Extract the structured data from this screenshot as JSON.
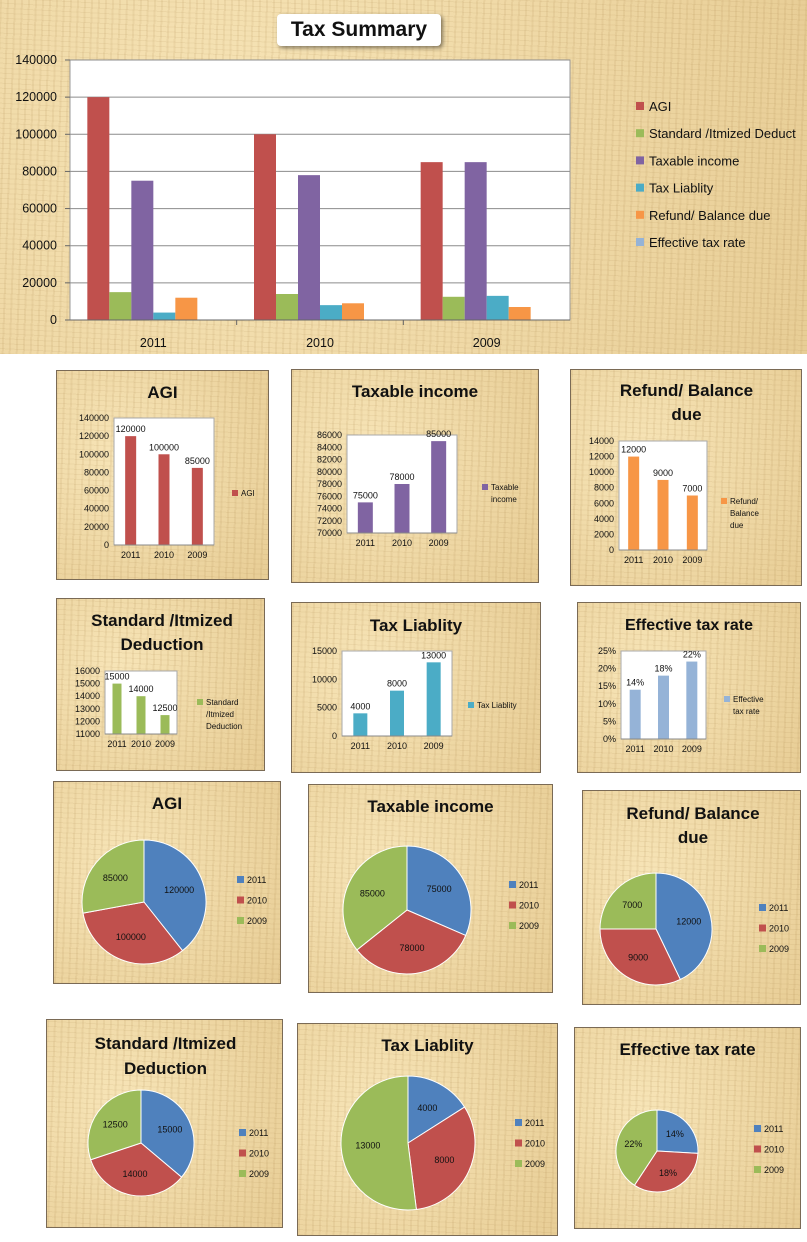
{
  "main": {
    "title": "Tax Summary",
    "colors": {
      "agi": "#c0504d",
      "deduction": "#9bbb59",
      "taxable": "#8064a2",
      "liability": "#4bacc6",
      "refund": "#f79646",
      "rate": "#95b3d7"
    }
  },
  "chart_data": [
    {
      "type": "bar",
      "title": "Tax Summary",
      "categories": [
        "2011",
        "2010",
        "2009"
      ],
      "series": [
        {
          "name": "AGI",
          "values": [
            120000,
            100000,
            85000
          ],
          "color": "#c0504d"
        },
        {
          "name": "Standard /Itmized Deduct",
          "values": [
            15000,
            14000,
            12500
          ],
          "color": "#9bbb59"
        },
        {
          "name": "Taxable income",
          "values": [
            75000,
            78000,
            85000
          ],
          "color": "#8064a2"
        },
        {
          "name": "Tax Liablity",
          "values": [
            4000,
            8000,
            13000
          ],
          "color": "#4bacc6"
        },
        {
          "name": "Refund/ Balance due",
          "values": [
            12000,
            9000,
            7000
          ],
          "color": "#f79646"
        },
        {
          "name": "Effective tax rate",
          "values": [
            0.14,
            0.18,
            0.22
          ],
          "color": "#95b3d7"
        }
      ],
      "yticks": [
        "0",
        "20000",
        "40000",
        "60000",
        "80000",
        "100000",
        "120000",
        "140000"
      ],
      "ylim": [
        0,
        140000
      ],
      "legend": "right",
      "grid": true
    },
    {
      "type": "bar",
      "title": "AGI",
      "categories": [
        "2011",
        "2010",
        "2009"
      ],
      "series": [
        {
          "name": "AGI",
          "values": [
            120000,
            100000,
            85000
          ],
          "color": "#c0504d"
        }
      ],
      "data_labels": [
        "120000",
        "100000",
        "85000"
      ],
      "yticks": [
        "0",
        "20000",
        "40000",
        "60000",
        "80000",
        "100000",
        "120000",
        "140000"
      ],
      "ylim": [
        0,
        140000
      ],
      "legend": "right"
    },
    {
      "type": "bar",
      "title": "Taxable income",
      "categories": [
        "2011",
        "2010",
        "2009"
      ],
      "series": [
        {
          "name": "Taxable income",
          "values": [
            75000,
            78000,
            85000
          ],
          "color": "#8064a2"
        }
      ],
      "data_labels": [
        "75000",
        "78000",
        "85000"
      ],
      "yticks": [
        "70000",
        "72000",
        "74000",
        "76000",
        "78000",
        "80000",
        "82000",
        "84000",
        "86000"
      ],
      "ylim": [
        70000,
        86000
      ],
      "legend": "right"
    },
    {
      "type": "bar",
      "title": "Refund/ Balance due",
      "categories": [
        "2011",
        "2010",
        "2009"
      ],
      "series": [
        {
          "name": "Refund/ Balance due",
          "values": [
            12000,
            9000,
            7000
          ],
          "color": "#f79646"
        }
      ],
      "data_labels": [
        "12000",
        "9000",
        "7000"
      ],
      "yticks": [
        "0",
        "2000",
        "4000",
        "6000",
        "8000",
        "10000",
        "12000",
        "14000"
      ],
      "ylim": [
        0,
        14000
      ],
      "legend": "right"
    },
    {
      "type": "bar",
      "title": "Standard /Itmized Deduction",
      "categories": [
        "2011",
        "2010",
        "2009"
      ],
      "series": [
        {
          "name": "Standard /Itmized Deduction",
          "values": [
            15000,
            14000,
            12500
          ],
          "color": "#9bbb59"
        }
      ],
      "data_labels": [
        "15000",
        "14000",
        "12500"
      ],
      "yticks": [
        "11000",
        "12000",
        "13000",
        "14000",
        "15000",
        "16000"
      ],
      "ylim": [
        11000,
        16000
      ],
      "legend": "right"
    },
    {
      "type": "bar",
      "title": "Tax Liablity",
      "categories": [
        "2011",
        "2010",
        "2009"
      ],
      "series": [
        {
          "name": "Tax Liablity",
          "values": [
            4000,
            8000,
            13000
          ],
          "color": "#4bacc6"
        }
      ],
      "data_labels": [
        "4000",
        "8000",
        "13000"
      ],
      "yticks": [
        "0",
        "5000",
        "10000",
        "15000"
      ],
      "ylim": [
        0,
        15000
      ],
      "legend": "right"
    },
    {
      "type": "bar",
      "title": "Effective tax rate",
      "categories": [
        "2011",
        "2010",
        "2009"
      ],
      "series": [
        {
          "name": "Effective tax rate",
          "values": [
            0.14,
            0.18,
            0.22
          ],
          "color": "#95b3d7"
        }
      ],
      "data_labels": [
        "14%",
        "18%",
        "22%"
      ],
      "yticks": [
        "0%",
        "5%",
        "10%",
        "15%",
        "20%",
        "25%"
      ],
      "ylim": [
        0,
        0.25
      ],
      "legend": "right"
    },
    {
      "type": "pie",
      "title": "AGI",
      "categories": [
        "2011",
        "2010",
        "2009"
      ],
      "values": [
        120000,
        100000,
        85000
      ],
      "data_labels": [
        "120000",
        "100000",
        "85000"
      ],
      "colors": [
        "#4f81bd",
        "#c0504d",
        "#9bbb59"
      ],
      "legend": "right"
    },
    {
      "type": "pie",
      "title": "Taxable income",
      "categories": [
        "2011",
        "2010",
        "2009"
      ],
      "values": [
        75000,
        78000,
        85000
      ],
      "data_labels": [
        "75000",
        "78000",
        "85000"
      ],
      "colors": [
        "#4f81bd",
        "#c0504d",
        "#9bbb59"
      ],
      "legend": "right"
    },
    {
      "type": "pie",
      "title": "Refund/ Balance due",
      "categories": [
        "2011",
        "2010",
        "2009"
      ],
      "values": [
        12000,
        9000,
        7000
      ],
      "data_labels": [
        "12000",
        "9000",
        "7000"
      ],
      "colors": [
        "#4f81bd",
        "#c0504d",
        "#9bbb59"
      ],
      "legend": "right"
    },
    {
      "type": "pie",
      "title": "Standard /Itmized Deduction",
      "categories": [
        "2011",
        "2010",
        "2009"
      ],
      "values": [
        15000,
        14000,
        12500
      ],
      "data_labels": [
        "15000",
        "14000",
        "12500"
      ],
      "colors": [
        "#4f81bd",
        "#c0504d",
        "#9bbb59"
      ],
      "legend": "right"
    },
    {
      "type": "pie",
      "title": "Tax Liablity",
      "categories": [
        "2011",
        "2010",
        "2009"
      ],
      "values": [
        4000,
        8000,
        13000
      ],
      "data_labels": [
        "4000",
        "8000",
        "13000"
      ],
      "colors": [
        "#4f81bd",
        "#c0504d",
        "#9bbb59"
      ],
      "legend": "right"
    },
    {
      "type": "pie",
      "title": "Effective tax rate",
      "categories": [
        "2011",
        "2010",
        "2009"
      ],
      "values": [
        0.14,
        0.18,
        0.22
      ],
      "data_labels": [
        "14%",
        "18%",
        "22%"
      ],
      "colors": [
        "#4f81bd",
        "#c0504d",
        "#9bbb59"
      ],
      "legend": "right"
    }
  ]
}
